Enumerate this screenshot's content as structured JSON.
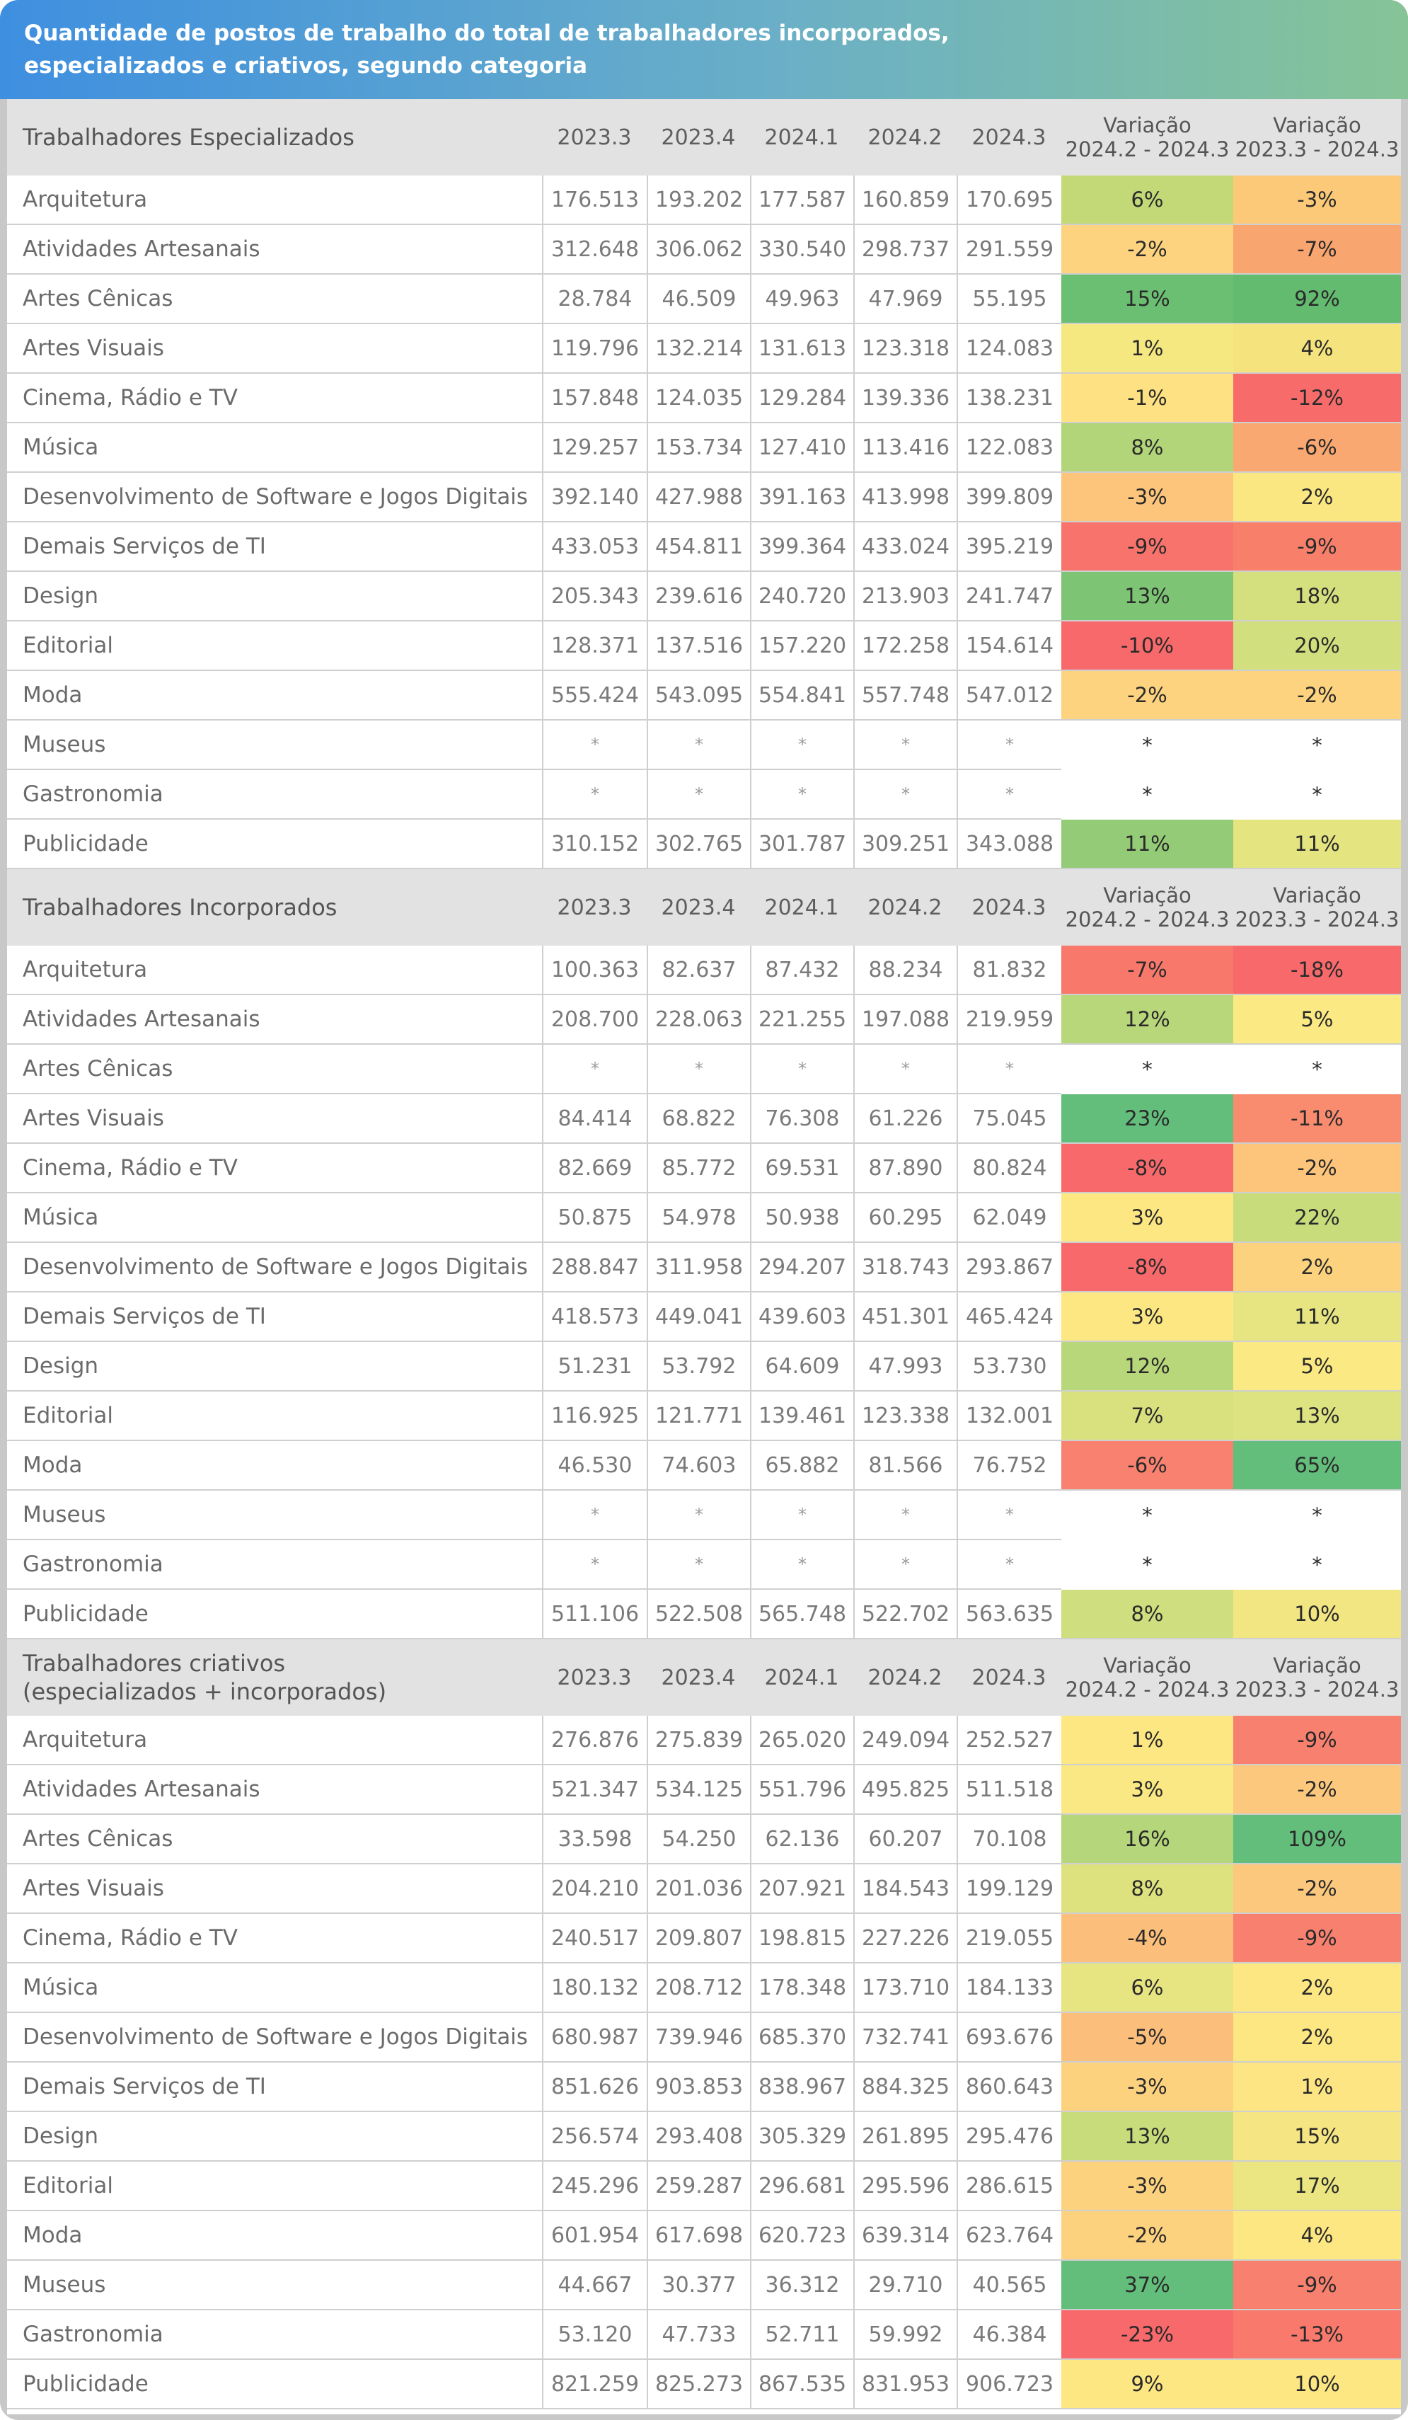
{
  "title": {
    "line1": "Quantidade de postos de trabalho do total de trabalhadores incorporados,",
    "line2": "especializados e criativos, segundo categoria"
  },
  "sections": [
    {
      "heading": [
        "Trabalhadores Especializados"
      ],
      "columns": [
        "2023.3",
        "2023.4",
        "2024.1",
        "2024.2",
        "2024.3"
      ],
      "var_cols": [
        [
          "Variação",
          "2024.2 - 2024.3"
        ],
        [
          "Variação",
          "2023.3 - 2024.3"
        ]
      ],
      "rows": [
        {
          "cat": "Arquitetura",
          "vals": [
            "176.513",
            "193.202",
            "177.587",
            "160.859",
            "170.695"
          ],
          "v1": "6%",
          "v2": "-3%",
          "c1": "#c3d978",
          "c2": "#fcc978"
        },
        {
          "cat": "Atividades Artesanais",
          "vals": [
            "312.648",
            "306.062",
            "330.540",
            "298.737",
            "291.559"
          ],
          "v1": "-2%",
          "v2": "-7%",
          "c1": "#fdd380",
          "c2": "#f9a56f"
        },
        {
          "cat": "Artes Cênicas",
          "vals": [
            "28.784",
            "46.509",
            "49.963",
            "47.969",
            "55.195"
          ],
          "v1": "15%",
          "v2": "92%",
          "c1": "#6bbf72",
          "c2": "#63bb6f"
        },
        {
          "cat": "Artes Visuais",
          "vals": [
            "119.796",
            "132.214",
            "131.613",
            "123.318",
            "124.083"
          ],
          "v1": "1%",
          "v2": "4%",
          "c1": "#f6e881",
          "c2": "#f5e47d"
        },
        {
          "cat": "Cinema, Rádio e TV",
          "vals": [
            "157.848",
            "124.035",
            "129.284",
            "139.336",
            "138.231"
          ],
          "v1": "-1%",
          "v2": "-12%",
          "c1": "#fde182",
          "c2": "#f86b6b"
        },
        {
          "cat": "Música",
          "vals": [
            "129.257",
            "153.734",
            "127.410",
            "113.416",
            "122.083"
          ],
          "v1": "8%",
          "v2": "-6%",
          "c1": "#b3d57a",
          "c2": "#faa871"
        },
        {
          "cat": "Desenvolvimento de Software e Jogos Digitais",
          "vals": [
            "392.140",
            "427.988",
            "391.163",
            "413.998",
            "399.809"
          ],
          "v1": "-3%",
          "v2": "2%",
          "c1": "#fcc57b",
          "c2": "#fbe782"
        },
        {
          "cat": "Demais Serviços de TI",
          "vals": [
            "433.053",
            "454.811",
            "399.364",
            "433.024",
            "395.219"
          ],
          "v1": "-9%",
          "v2": "-9%",
          "c1": "#f7736b",
          "c2": "#f8806b"
        },
        {
          "cat": "Design",
          "vals": [
            "205.343",
            "239.616",
            "240.720",
            "213.903",
            "241.747"
          ],
          "v1": "13%",
          "v2": "18%",
          "c1": "#7dc474",
          "c2": "#d4e07e"
        },
        {
          "cat": "Editorial",
          "vals": [
            "128.371",
            "137.516",
            "157.220",
            "172.258",
            "154.614"
          ],
          "v1": "-10%",
          "v2": "20%",
          "c1": "#f8696b",
          "c2": "#d2df7e"
        },
        {
          "cat": "Moda",
          "vals": [
            "555.424",
            "543.095",
            "554.841",
            "557.748",
            "547.012"
          ],
          "v1": "-2%",
          "v2": "-2%",
          "c1": "#fdd380",
          "c2": "#fdd37f"
        },
        {
          "cat": "Museus",
          "vals": [
            "*",
            "*",
            "*",
            "*",
            "*"
          ],
          "v1": "*",
          "v2": "*",
          "c1": "#ffffff",
          "c2": "#ffffff"
        },
        {
          "cat": "Gastronomia",
          "vals": [
            "*",
            "*",
            "*",
            "*",
            "*"
          ],
          "v1": "*",
          "v2": "*",
          "c1": "#ffffff",
          "c2": "#ffffff"
        },
        {
          "cat": "Publicidade",
          "vals": [
            "310.152",
            "302.765",
            "301.787",
            "309.251",
            "343.088"
          ],
          "v1": "11%",
          "v2": "11%",
          "c1": "#93cb77",
          "c2": "#e4e480"
        }
      ]
    },
    {
      "heading": [
        "Trabalhadores Incorporados"
      ],
      "columns": [
        "2023.3",
        "2023.4",
        "2024.1",
        "2024.2",
        "2024.3"
      ],
      "var_cols": [
        [
          "Variação",
          "2024.2 - 2024.3"
        ],
        [
          "Variação",
          "2023.3 - 2024.3"
        ]
      ],
      "rows": [
        {
          "cat": "Arquitetura",
          "vals": [
            "100.363",
            "82.637",
            "87.432",
            "88.234",
            "81.832"
          ],
          "v1": "-7%",
          "v2": "-18%",
          "c1": "#f8796b",
          "c2": "#f8696b"
        },
        {
          "cat": "Atividades Artesanais",
          "vals": [
            "208.700",
            "228.063",
            "221.255",
            "197.088",
            "219.959"
          ],
          "v1": "12%",
          "v2": "5%",
          "c1": "#b8d77a",
          "c2": "#fbe983"
        },
        {
          "cat": "Artes Cênicas",
          "vals": [
            "*",
            "*",
            "*",
            "*",
            "*"
          ],
          "v1": "*",
          "v2": "*",
          "c1": "#ffffff",
          "c2": "#ffffff"
        },
        {
          "cat": "Artes Visuais",
          "vals": [
            "84.414",
            "68.822",
            "76.308",
            "61.226",
            "75.045"
          ],
          "v1": "23%",
          "v2": "-11%",
          "c1": "#63be7b",
          "c2": "#f98b6f"
        },
        {
          "cat": "Cinema, Rádio e TV",
          "vals": [
            "82.669",
            "85.772",
            "69.531",
            "87.890",
            "80.824"
          ],
          "v1": "-8%",
          "v2": "-2%",
          "c1": "#f8696b",
          "c2": "#fdc57b"
        },
        {
          "cat": "Música",
          "vals": [
            "50.875",
            "54.978",
            "50.938",
            "60.295",
            "62.049"
          ],
          "v1": "3%",
          "v2": "22%",
          "c1": "#fde783",
          "c2": "#c9dc7c"
        },
        {
          "cat": "Desenvolvimento de Software e Jogos Digitais",
          "vals": [
            "288.847",
            "311.958",
            "294.207",
            "318.743",
            "293.867"
          ],
          "v1": "-8%",
          "v2": "2%",
          "c1": "#f8696b",
          "c2": "#fdd27f"
        },
        {
          "cat": "Demais Serviços de TI",
          "vals": [
            "418.573",
            "449.041",
            "439.603",
            "451.301",
            "465.424"
          ],
          "v1": "3%",
          "v2": "11%",
          "c1": "#fde783",
          "c2": "#e6e582"
        },
        {
          "cat": "Design",
          "vals": [
            "51.231",
            "53.792",
            "64.609",
            "47.993",
            "53.730"
          ],
          "v1": "12%",
          "v2": "5%",
          "c1": "#b8d77a",
          "c2": "#fbe983"
        },
        {
          "cat": "Editorial",
          "vals": [
            "116.925",
            "121.771",
            "139.461",
            "123.338",
            "132.001"
          ],
          "v1": "7%",
          "v2": "13%",
          "c1": "#d9e17f",
          "c2": "#dee381"
        },
        {
          "cat": "Moda",
          "vals": [
            "46.530",
            "74.603",
            "65.882",
            "81.566",
            "76.752"
          ],
          "v1": "-6%",
          "v2": "65%",
          "c1": "#f8816f",
          "c2": "#63be7b"
        },
        {
          "cat": "Museus",
          "vals": [
            "*",
            "*",
            "*",
            "*",
            "*"
          ],
          "v1": "*",
          "v2": "*",
          "c1": "#ffffff",
          "c2": "#ffffff"
        },
        {
          "cat": "Gastronomia",
          "vals": [
            "*",
            "*",
            "*",
            "*",
            "*"
          ],
          "v1": "*",
          "v2": "*",
          "c1": "#ffffff",
          "c2": "#ffffff"
        },
        {
          "cat": "Publicidade",
          "vals": [
            "511.106",
            "522.508",
            "565.748",
            "522.702",
            "563.635"
          ],
          "v1": "8%",
          "v2": "10%",
          "c1": "#cfde7e",
          "c2": "#f2e683"
        }
      ]
    },
    {
      "heading": [
        "Trabalhadores criativos",
        "(especializados + incorporados)"
      ],
      "columns": [
        "2023.3",
        "2023.4",
        "2024.1",
        "2024.2",
        "2024.3"
      ],
      "var_cols": [
        [
          "Variação",
          "2024.2 - 2024.3"
        ],
        [
          "Variação",
          "2023.3 - 2024.3"
        ]
      ],
      "rows": [
        {
          "cat": "Arquitetura",
          "vals": [
            "276.876",
            "275.839",
            "265.020",
            "249.094",
            "252.527"
          ],
          "v1": "1%",
          "v2": "-9%",
          "c1": "#fde783",
          "c2": "#f8806f"
        },
        {
          "cat": "Atividades Artesanais",
          "vals": [
            "521.347",
            "534.125",
            "551.796",
            "495.825",
            "511.518"
          ],
          "v1": "3%",
          "v2": "-2%",
          "c1": "#f9e883",
          "c2": "#fcc87d"
        },
        {
          "cat": "Artes Cênicas",
          "vals": [
            "33.598",
            "54.250",
            "62.136",
            "60.207",
            "70.108"
          ],
          "v1": "16%",
          "v2": "109%",
          "c1": "#b5d67a",
          "c2": "#63be7b"
        },
        {
          "cat": "Artes Visuais",
          "vals": [
            "204.210",
            "201.036",
            "207.921",
            "184.543",
            "199.129"
          ],
          "v1": "8%",
          "v2": "-2%",
          "c1": "#dde27f",
          "c2": "#fcc87d"
        },
        {
          "cat": "Cinema, Rádio e TV",
          "vals": [
            "240.517",
            "209.807",
            "198.815",
            "227.226",
            "219.055"
          ],
          "v1": "-4%",
          "v2": "-9%",
          "c1": "#fcbf7b",
          "c2": "#f8806f"
        },
        {
          "cat": "Música",
          "vals": [
            "180.132",
            "208.712",
            "178.348",
            "173.710",
            "184.133"
          ],
          "v1": "6%",
          "v2": "2%",
          "c1": "#e7e482",
          "c2": "#fde783"
        },
        {
          "cat": "Desenvolvimento de Software e Jogos Digitais",
          "vals": [
            "680.987",
            "739.946",
            "685.370",
            "732.741",
            "693.676"
          ],
          "v1": "-5%",
          "v2": "2%",
          "c1": "#fbbe7b",
          "c2": "#fde783"
        },
        {
          "cat": "Demais Serviços de TI",
          "vals": [
            "851.626",
            "903.853",
            "838.967",
            "884.325",
            "860.643"
          ],
          "v1": "-3%",
          "v2": "1%",
          "c1": "#fdd27f",
          "c2": "#fde583"
        },
        {
          "cat": "Design",
          "vals": [
            "256.574",
            "293.408",
            "305.329",
            "261.895",
            "295.476"
          ],
          "v1": "13%",
          "v2": "15%",
          "c1": "#c9dc7c",
          "c2": "#f5e683"
        },
        {
          "cat": "Editorial",
          "vals": [
            "245.296",
            "259.287",
            "296.681",
            "295.596",
            "286.615"
          ],
          "v1": "-3%",
          "v2": "17%",
          "c1": "#fdd27f",
          "c2": "#ebe582"
        },
        {
          "cat": "Moda",
          "vals": [
            "601.954",
            "617.698",
            "620.723",
            "639.314",
            "623.764"
          ],
          "v1": "-2%",
          "v2": "4%",
          "c1": "#fdd27f",
          "c2": "#fde783"
        },
        {
          "cat": "Museus",
          "vals": [
            "44.667",
            "30.377",
            "36.312",
            "29.710",
            "40.565"
          ],
          "v1": "37%",
          "v2": "-9%",
          "c1": "#63be7b",
          "c2": "#f8806f"
        },
        {
          "cat": "Gastronomia",
          "vals": [
            "53.120",
            "47.733",
            "52.711",
            "59.992",
            "46.384"
          ],
          "v1": "-23%",
          "v2": "-13%",
          "c1": "#f8696b",
          "c2": "#f9796c"
        },
        {
          "cat": "Publicidade",
          "vals": [
            "821.259",
            "825.273",
            "867.535",
            "831.953",
            "906.723"
          ],
          "v1": "9%",
          "v2": "10%",
          "c1": "#fde783",
          "c2": "#fde783"
        }
      ]
    }
  ]
}
